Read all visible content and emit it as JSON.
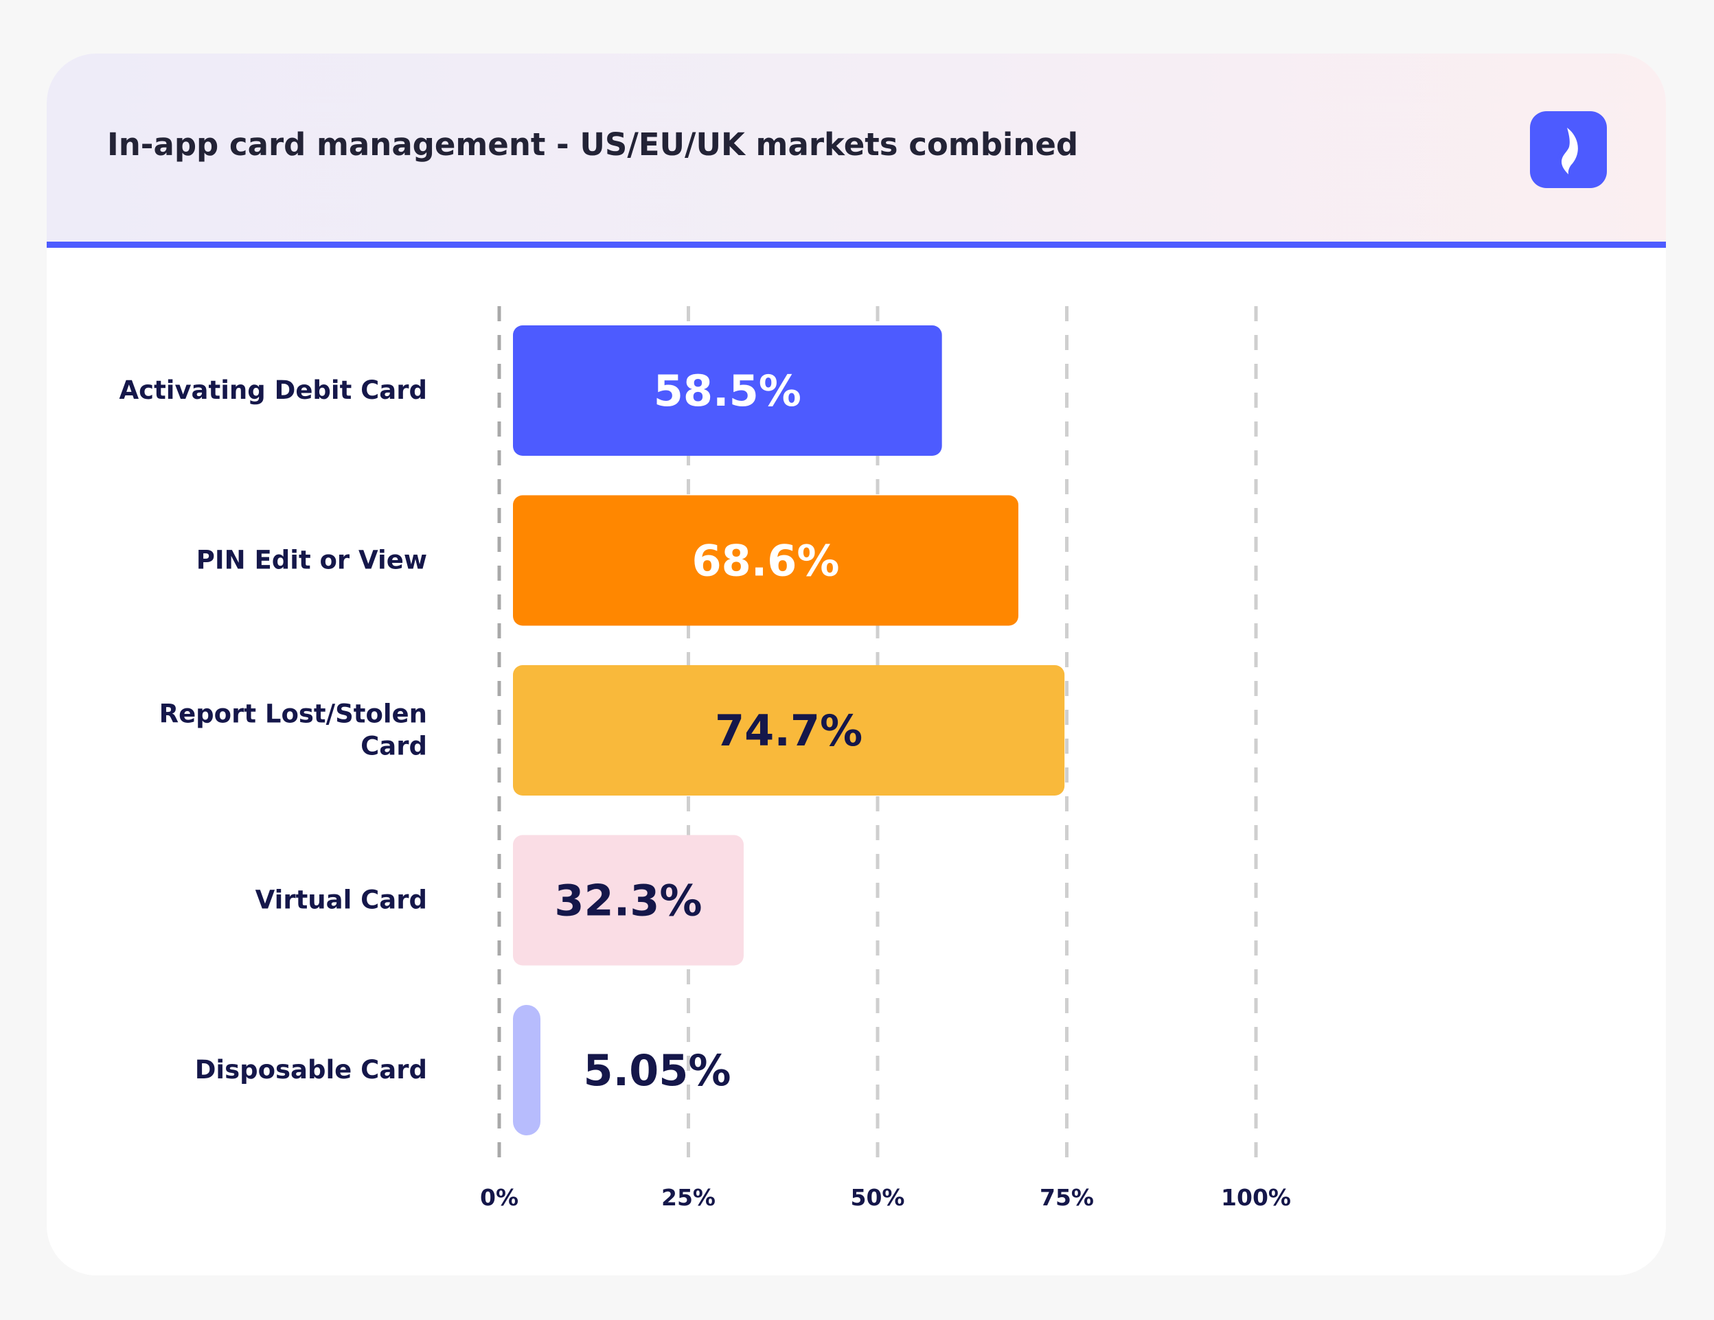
{
  "header": {
    "title": "In-app card management - US/EU/UK markets combined",
    "logo_icon": "leaf-logo-icon",
    "accent_color": "#4d5bff"
  },
  "chart_data": {
    "type": "bar",
    "orientation": "horizontal",
    "title": "In-app card management - US/EU/UK markets combined",
    "categories": [
      "Activating Debit Card",
      "PIN Edit or View",
      "Report Lost/Stolen Card",
      "Virtual Card",
      "Disposable Card"
    ],
    "category_lines": [
      [
        "Activating Debit Card"
      ],
      [
        "PIN Edit or View"
      ],
      [
        "Report Lost/Stolen",
        "Card"
      ],
      [
        "Virtual Card"
      ],
      [
        "Disposable Card"
      ]
    ],
    "values": [
      58.5,
      68.6,
      74.7,
      32.3,
      5.05
    ],
    "value_labels": [
      "58.5%",
      "68.6%",
      "74.7%",
      "32.3%",
      "5.05%"
    ],
    "colors": [
      "#4d5bff",
      "#ff8700",
      "#f9b93b",
      "#fadde5",
      "#b7bcfd"
    ],
    "label_colors": [
      "#ffffff",
      "#ffffff",
      "#15174a",
      "#15174a",
      "#15174a"
    ],
    "xlim": [
      0,
      100
    ],
    "xticks": [
      0,
      25,
      50,
      75,
      100
    ],
    "xtick_labels": [
      "0%",
      "25%",
      "50%",
      "75%",
      "100%"
    ],
    "xlabel": "",
    "ylabel": "",
    "grid": true,
    "legend": null
  }
}
